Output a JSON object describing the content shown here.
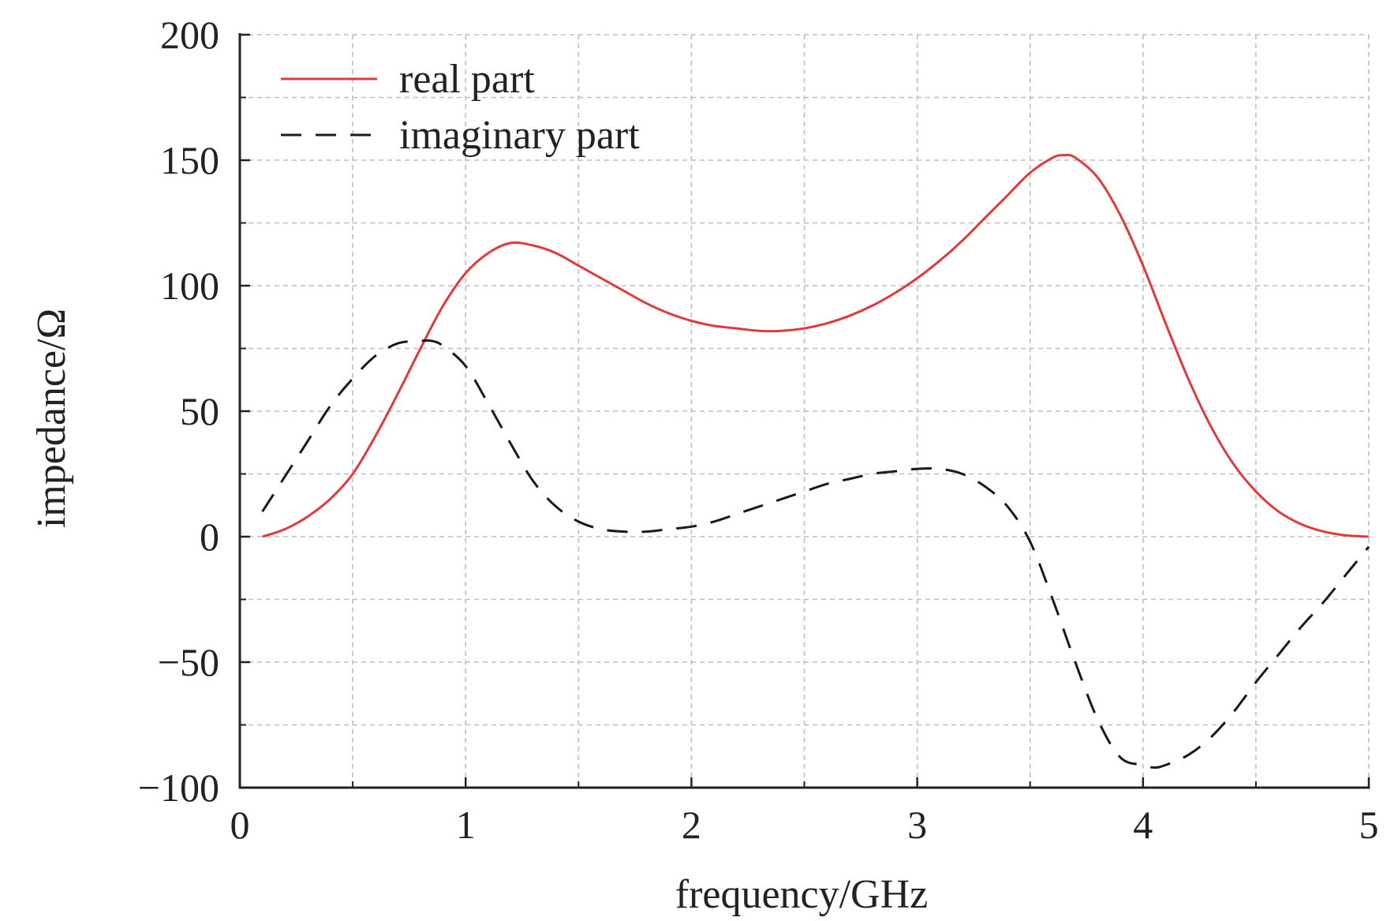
{
  "chart_data": {
    "type": "line",
    "xlabel": "frequency/GHz",
    "ylabel": "impedance/Ω",
    "xlim": [
      0,
      5
    ],
    "ylim": [
      -100,
      200
    ],
    "xticks": [
      0,
      1,
      2,
      3,
      4,
      5
    ],
    "yticks": [
      -100,
      -50,
      0,
      50,
      100,
      150,
      200
    ],
    "xtick_labels": [
      "0",
      "1",
      "2",
      "3",
      "4",
      "5"
    ],
    "ytick_labels": [
      "−100",
      "−50",
      "0",
      "50",
      "100",
      "150",
      "200"
    ],
    "grid": true,
    "legend_position": "top-left",
    "series": [
      {
        "name": "real part",
        "color": "#e03a3e",
        "style": "solid",
        "x": [
          0.1,
          0.2,
          0.3,
          0.4,
          0.5,
          0.6,
          0.7,
          0.8,
          0.9,
          1.0,
          1.1,
          1.2,
          1.3,
          1.4,
          1.5,
          1.6,
          1.7,
          1.8,
          1.9,
          2.0,
          2.1,
          2.2,
          2.3,
          2.4,
          2.5,
          2.6,
          2.7,
          2.8,
          2.9,
          3.0,
          3.1,
          3.2,
          3.3,
          3.4,
          3.5,
          3.6,
          3.65,
          3.7,
          3.8,
          3.9,
          4.0,
          4.1,
          4.2,
          4.3,
          4.4,
          4.5,
          4.6,
          4.7,
          4.8,
          4.9,
          5.0
        ],
        "y": [
          0,
          3,
          8,
          15,
          25,
          40,
          57,
          75,
          92,
          105,
          113,
          117,
          116,
          113,
          108,
          103,
          98,
          93,
          89,
          86,
          84,
          83,
          82,
          82,
          83,
          85,
          88,
          92,
          97,
          103,
          110,
          118,
          127,
          136,
          145,
          151,
          152,
          151,
          143,
          128,
          108,
          85,
          63,
          44,
          29,
          18,
          10,
          5,
          2,
          0.5,
          0
        ]
      },
      {
        "name": "imaginary part",
        "color": "#1a1a1a",
        "style": "dashed",
        "x": [
          0.1,
          0.2,
          0.3,
          0.4,
          0.5,
          0.6,
          0.7,
          0.8,
          0.85,
          0.9,
          1.0,
          1.1,
          1.2,
          1.3,
          1.4,
          1.5,
          1.6,
          1.7,
          1.8,
          1.9,
          2.0,
          2.1,
          2.2,
          2.3,
          2.4,
          2.5,
          2.6,
          2.7,
          2.8,
          2.9,
          3.0,
          3.1,
          3.2,
          3.3,
          3.4,
          3.5,
          3.6,
          3.7,
          3.8,
          3.9,
          4.0,
          4.05,
          4.1,
          4.2,
          4.3,
          4.4,
          4.5,
          4.6,
          4.7,
          4.8,
          4.9,
          5.0
        ],
        "y": [
          10,
          24,
          38,
          52,
          63,
          72,
          77,
          78,
          78,
          76,
          68,
          53,
          37,
          22,
          12,
          6,
          3,
          2,
          2,
          3,
          4,
          6,
          9,
          12,
          15,
          18,
          21,
          23,
          25,
          26,
          27,
          27,
          25,
          20,
          12,
          -2,
          -25,
          -50,
          -73,
          -88,
          -91,
          -92,
          -91,
          -87,
          -80,
          -70,
          -58,
          -47,
          -36,
          -26,
          -15,
          -4
        ]
      }
    ]
  }
}
